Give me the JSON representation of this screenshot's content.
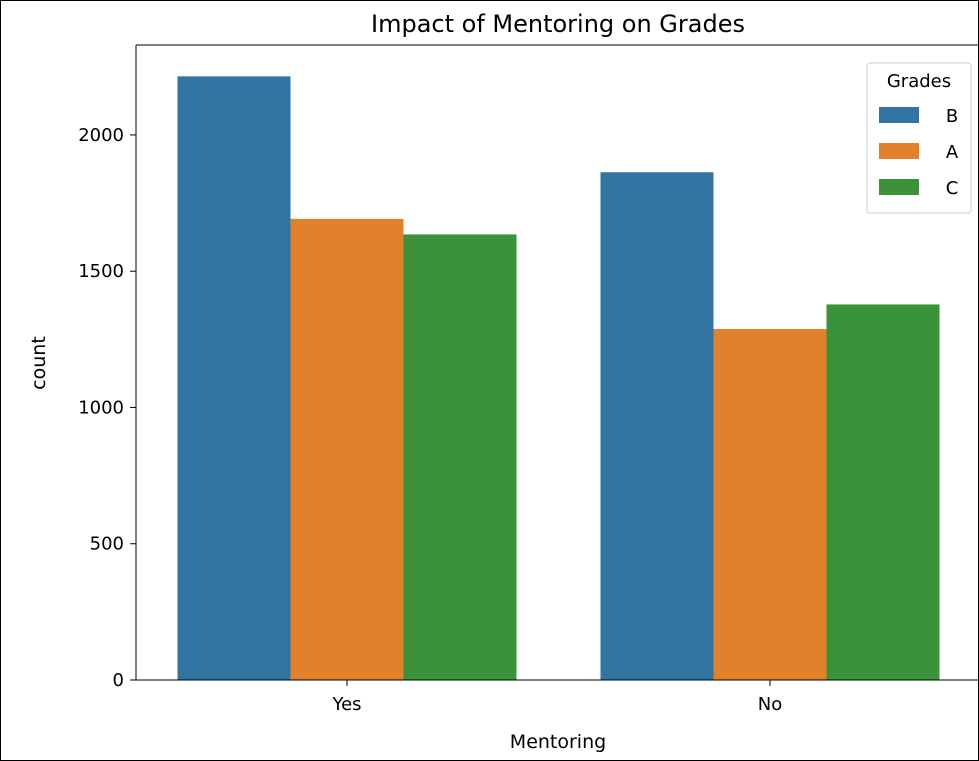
{
  "chart_data": {
    "type": "bar",
    "title": "Impact of Mentoring on Grades",
    "xlabel": "Mentoring",
    "ylabel": "count",
    "categories": [
      "Yes",
      "No"
    ],
    "series": [
      {
        "name": "B",
        "color": "#3274a1",
        "values": [
          2215,
          1863
        ]
      },
      {
        "name": "A",
        "color": "#e1812c",
        "values": [
          1692,
          1288
        ]
      },
      {
        "name": "C",
        "color": "#3a923a",
        "values": [
          1635,
          1378
        ]
      }
    ],
    "ylim": [
      0,
      2330
    ],
    "yticks": [
      0,
      500,
      1000,
      1500,
      2000
    ],
    "grid": false,
    "legend": {
      "title": "Grades",
      "placement": "top-right"
    }
  }
}
